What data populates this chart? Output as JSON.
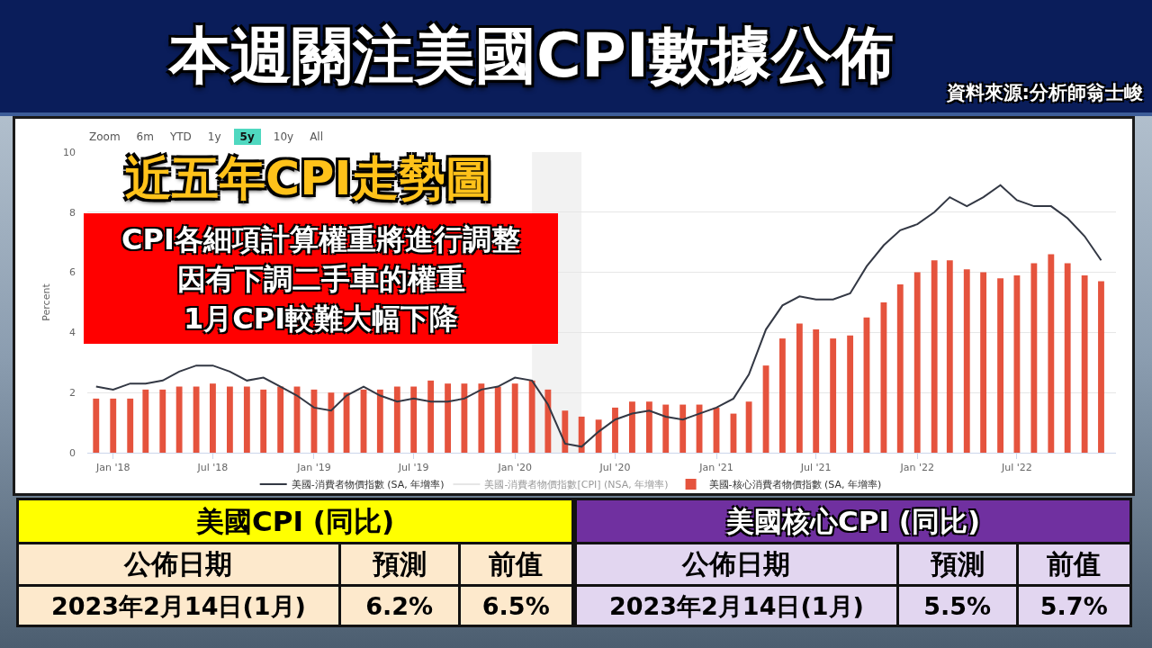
{
  "chart_data": [
    {
      "type": "bar",
      "title": "本週關注美國CPI數據公佈",
      "subtitle": "近五年CPI走勢圖",
      "ylabel": "Percent",
      "annotations": [
        "資料來源:分析師翁士峻",
        "CPI各細項計算權重將進行調整",
        "因有下調二手車的權重",
        "1月CPI較難大幅下降",
        "Zoom",
        "6m",
        "YTD",
        "1y",
        "5y",
        "10y",
        "All"
      ],
      "x": [
        "2017-12",
        "2018-01",
        "2018-02",
        "2018-03",
        "2018-04",
        "2018-05",
        "2018-06",
        "2018-07",
        "2018-08",
        "2018-09",
        "2018-10",
        "2018-11",
        "2018-12",
        "2019-01",
        "2019-02",
        "2019-03",
        "2019-04",
        "2019-05",
        "2019-06",
        "2019-07",
        "2019-08",
        "2019-09",
        "2019-10",
        "2019-11",
        "2019-12",
        "2020-01",
        "2020-02",
        "2020-03",
        "2020-04",
        "2020-05",
        "2020-06",
        "2020-07",
        "2020-08",
        "2020-09",
        "2020-10",
        "2020-11",
        "2020-12",
        "2021-01",
        "2021-02",
        "2021-03",
        "2021-04",
        "2021-05",
        "2021-06",
        "2021-07",
        "2021-08",
        "2021-09",
        "2021-10",
        "2021-11",
        "2021-12",
        "2022-01",
        "2022-02",
        "2022-03",
        "2022-04",
        "2022-05",
        "2022-06",
        "2022-07",
        "2022-08",
        "2022-09",
        "2022-10",
        "2022-11",
        "2022-12"
      ],
      "series": [
        {
          "name": "美國-消費者物價指數 (SA, 年增率)",
          "type": "line",
          "color": "#333844",
          "values": [
            2.2,
            2.1,
            2.3,
            2.3,
            2.4,
            2.7,
            2.9,
            2.9,
            2.7,
            2.4,
            2.5,
            2.2,
            1.9,
            1.5,
            1.4,
            1.9,
            2.2,
            1.9,
            1.7,
            1.8,
            1.7,
            1.7,
            1.8,
            2.1,
            2.2,
            2.5,
            2.4,
            1.6,
            0.3,
            0.2,
            0.7,
            1.1,
            1.3,
            1.4,
            1.2,
            1.1,
            1.3,
            1.5,
            1.8,
            2.6,
            4.1,
            4.9,
            5.2,
            5.1,
            5.1,
            5.3,
            6.2,
            6.9,
            7.4,
            7.6,
            8.0,
            8.5,
            8.2,
            8.5,
            8.9,
            8.4,
            8.2,
            8.2,
            7.8,
            7.2,
            6.4
          ]
        },
        {
          "name": "美國-消費者物價指數[CPI] (NSA, 年增率)",
          "type": "line",
          "color": "#cccccc",
          "values": [
            null,
            null,
            null,
            null,
            null,
            null,
            null,
            null,
            null,
            null,
            null,
            null,
            null,
            null,
            null,
            null,
            null,
            null,
            null,
            null,
            null,
            null,
            null,
            null,
            null,
            null,
            null,
            null,
            null,
            null,
            null,
            null,
            null,
            null,
            null,
            null,
            null,
            null,
            null,
            null,
            null,
            null,
            null,
            null,
            null,
            null,
            null,
            null,
            null,
            null,
            null,
            null,
            null,
            null,
            null,
            null,
            null,
            null,
            null,
            null,
            null
          ]
        },
        {
          "name": "美國-核心消費者物價指數 (SA, 年增率)",
          "type": "bar",
          "color": "#e5533d",
          "values": [
            1.8,
            1.8,
            1.8,
            2.1,
            2.1,
            2.2,
            2.2,
            2.3,
            2.2,
            2.2,
            2.1,
            2.2,
            2.2,
            2.1,
            2.0,
            2.0,
            2.1,
            2.1,
            2.2,
            2.2,
            2.4,
            2.3,
            2.3,
            2.3,
            2.2,
            2.3,
            2.4,
            2.1,
            1.4,
            1.2,
            1.1,
            1.5,
            1.7,
            1.7,
            1.6,
            1.6,
            1.6,
            1.5,
            1.3,
            1.7,
            2.9,
            3.8,
            4.3,
            4.1,
            3.8,
            3.9,
            4.5,
            5.0,
            5.6,
            6.0,
            6.4,
            6.4,
            6.1,
            6.0,
            5.8,
            5.9,
            6.3,
            6.6,
            6.3,
            5.9,
            5.7
          ]
        }
      ],
      "xlim": [
        "2017-11-15",
        "2022-12-28"
      ],
      "xticks": [
        {
          "value": "2018-01",
          "label": "Jan '18"
        },
        {
          "value": "2018-07",
          "label": "Jul '18"
        },
        {
          "value": "2019-01",
          "label": "Jan '19"
        },
        {
          "value": "2019-07",
          "label": "Jul '19"
        },
        {
          "value": "2020-01",
          "label": "Jan '20"
        },
        {
          "value": "2020-07",
          "label": "Jul '20"
        },
        {
          "value": "2021-01",
          "label": "Jan '21"
        },
        {
          "value": "2021-07",
          "label": "Jul '21"
        },
        {
          "value": "2022-01",
          "label": "Jan '22"
        },
        {
          "value": "2022-07",
          "label": "Jul '22"
        }
      ],
      "ylim": [
        0,
        10
      ],
      "yticks": [
        0,
        2,
        4,
        6,
        8,
        10
      ],
      "bands": [
        {
          "axis": "x",
          "from": "2020-02-01",
          "to": "2020-05-01",
          "color": "#f2f2f2"
        }
      ],
      "grid": "y",
      "legend": "bottom"
    },
    {
      "type": "other",
      "title": "美國CPI (同比)",
      "annotations": [
        "公佈日期",
        "預測",
        "前值",
        "2023年2月14日(1月)",
        "6.2%",
        "6.5%"
      ]
    },
    {
      "type": "other",
      "title": "美國核心CPI (同比)",
      "annotations": [
        "公佈日期",
        "預測",
        "前值",
        "2023年2月14日(1月)",
        "5.5%",
        "5.7%"
      ]
    }
  ]
}
